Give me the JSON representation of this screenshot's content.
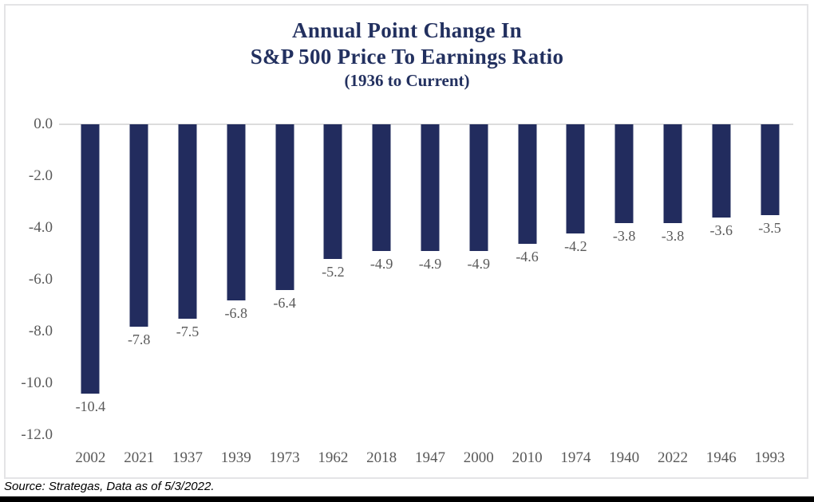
{
  "title": {
    "line1": "Annual Point Change In",
    "line2": "S&P 500 Price To Earnings Ratio",
    "line3": "(1936 to Current)"
  },
  "source": "Source: Strategas, Data as of 5/3/2022.",
  "colors": {
    "bar": "#222c5e",
    "title": "#22305f",
    "axis_label": "#595959",
    "zero_line": "#dcdcdc",
    "frame_border": "#e4e4e6",
    "bottom_rule": "#000000"
  },
  "chart_data": {
    "type": "bar",
    "title": "Annual Point Change In S&P 500 Price To Earnings Ratio",
    "subtitle": "(1936 to Current)",
    "categories": [
      "2002",
      "2021",
      "1937",
      "1939",
      "1973",
      "1962",
      "2018",
      "1947",
      "2000",
      "2010",
      "1974",
      "1940",
      "2022",
      "1946",
      "1993"
    ],
    "values": [
      -10.4,
      -7.8,
      -7.5,
      -6.8,
      -6.4,
      -5.2,
      -4.9,
      -4.9,
      -4.9,
      -4.6,
      -4.2,
      -3.8,
      -3.8,
      -3.6,
      -3.5
    ],
    "data_labels": [
      "-10.4",
      "-7.8",
      "-7.5",
      "-6.8",
      "-6.4",
      "-5.2",
      "-4.9",
      "-4.9",
      "-4.9",
      "-4.6",
      "-4.2",
      "-3.8",
      "-3.8",
      "-3.6",
      "-3.5"
    ],
    "xlabel": "",
    "ylabel": "",
    "ylim": [
      -12,
      0
    ],
    "yticks": [
      0,
      -2,
      -4,
      -6,
      -8,
      -10,
      -12
    ],
    "ytick_labels": [
      "0.0",
      "-2.0",
      "-4.0",
      "-6.0",
      "-8.0",
      "-10.0",
      "-12.0"
    ],
    "grid": false,
    "legend": false,
    "bar_color": "#222c5e"
  }
}
